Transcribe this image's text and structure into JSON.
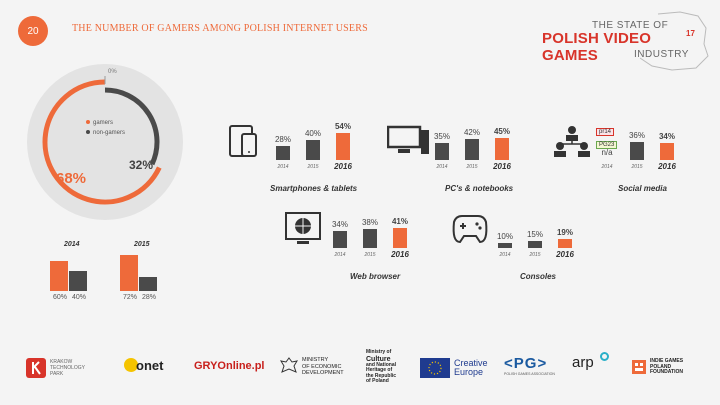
{
  "header": {
    "page_number": "20",
    "title": "THE NUMBER OF GAMERS AMONG POLISH INTERNET USERS"
  },
  "logo": {
    "line1": "THE STATE OF",
    "line2": "POLISH VIDEO GAMES",
    "sup": "17",
    "line3": "INDUSTRY"
  },
  "colors": {
    "accent": "#ee6a3a",
    "dark": "#4a4a4a",
    "bg": "#f4f4f4"
  },
  "chart_data": [
    {
      "type": "pie",
      "labels": [
        "gamers",
        "non-gamers"
      ],
      "values": [
        68,
        32
      ],
      "value_labels": [
        "68%",
        "32%"
      ],
      "zero_label": "0%"
    },
    {
      "type": "bar",
      "categories": [
        "2014",
        "2015"
      ],
      "series": [
        {
          "name": "gamers",
          "values": [
            60,
            72
          ],
          "labels": [
            "60%",
            "72%"
          ]
        },
        {
          "name": "non-gamers",
          "values": [
            40,
            28
          ],
          "labels": [
            "40%",
            "28%"
          ]
        }
      ]
    },
    {
      "type": "bar",
      "title": "Smartphones & tablets",
      "icon": "smartphone-tablet-icon",
      "categories": [
        "2014",
        "2015",
        "2016"
      ],
      "values": [
        28,
        40,
        54
      ],
      "labels": [
        "28%",
        "40%",
        "54%"
      ]
    },
    {
      "type": "bar",
      "title": "PC's & notebooks",
      "icon": "desktop-pc-icon",
      "categories": [
        "2014",
        "2015",
        "2016"
      ],
      "values": [
        35,
        42,
        45
      ],
      "labels": [
        "35%",
        "42%",
        "45%"
      ]
    },
    {
      "type": "bar",
      "title": "Social media",
      "icon": "social-network-icon",
      "categories": [
        "2014",
        "2015",
        "2016"
      ],
      "values": [
        null,
        36,
        34
      ],
      "labels": [
        "n/a",
        "36%",
        "34%"
      ],
      "tags": [
        "pr14",
        "PG23"
      ]
    },
    {
      "type": "bar",
      "title": "Web browser",
      "icon": "web-browser-globe-icon",
      "categories": [
        "2014",
        "2015",
        "2016"
      ],
      "values": [
        34,
        38,
        41
      ],
      "labels": [
        "34%",
        "38%",
        "41%"
      ]
    },
    {
      "type": "bar",
      "title": "Consoles",
      "icon": "gamepad-icon",
      "categories": [
        "2014",
        "2015",
        "2016"
      ],
      "values": [
        10,
        15,
        19
      ],
      "labels": [
        "10%",
        "15%",
        "19%"
      ]
    }
  ],
  "footer": {
    "krakow": [
      "KRAKOW",
      "TECHNOLOGY",
      "PARK"
    ],
    "onet": "onet",
    "gry": "GRYOnline.pl",
    "ministry_econ": [
      "MINISTRY",
      "OF ECONOMIC",
      "DEVELOPMENT"
    ],
    "ministry_culture": [
      "Ministry of",
      "Culture",
      "and National",
      "Heritage of",
      "the Republic",
      "of Poland"
    ],
    "creative": [
      "Creative",
      "Europe"
    ],
    "pg": "PG",
    "pg_sub": "POLISH GAMES ASSOCIATION",
    "arp": "arp",
    "igp": [
      "INDIE GAMES",
      "POLAND",
      "FOUNDATION"
    ]
  }
}
